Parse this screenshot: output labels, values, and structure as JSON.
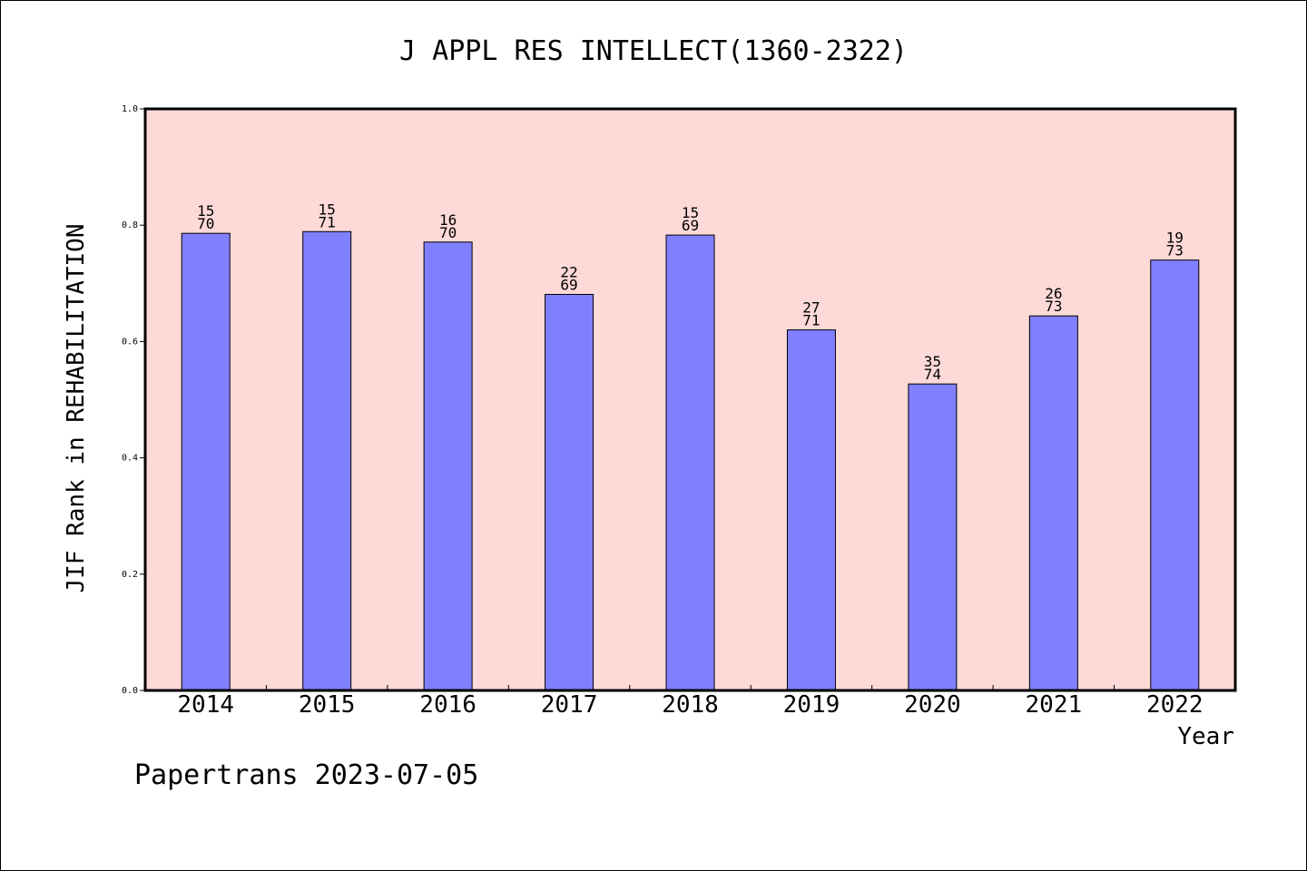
{
  "chart_data": {
    "type": "bar",
    "title": "J APPL RES INTELLECT(1360-2322)",
    "ylabel": "JIF Rank in REHABILITATION",
    "xlabel": "Year",
    "ylim": [
      0,
      1.0
    ],
    "yticks": [
      "0.0",
      "0.2",
      "0.4",
      "0.6",
      "0.8",
      "1.0"
    ],
    "categories": [
      "2014",
      "2015",
      "2016",
      "2017",
      "2018",
      "2019",
      "2020",
      "2021",
      "2022"
    ],
    "values": [
      0.786,
      0.789,
      0.771,
      0.681,
      0.783,
      0.62,
      0.527,
      0.644,
      0.74
    ],
    "ranks": [
      "15",
      "15",
      "16",
      "22",
      "15",
      "27",
      "35",
      "26",
      "19"
    ],
    "totals": [
      "70",
      "71",
      "70",
      "69",
      "69",
      "71",
      "74",
      "73",
      "73"
    ],
    "grid": false,
    "colors": {
      "plot_bg": "#fdd9d7",
      "bar": "#8080ff"
    }
  },
  "footer": "Papertrans 2023-07-05"
}
